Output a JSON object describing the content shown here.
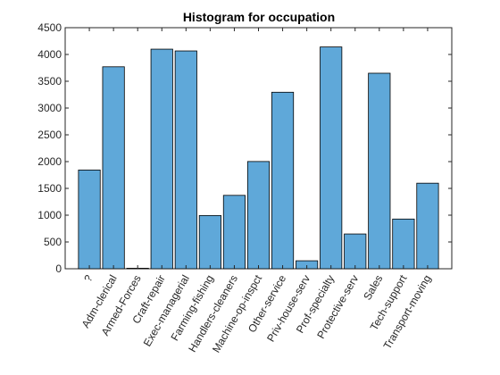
{
  "chart_data": {
    "type": "bar",
    "title": "Histogram for occupation",
    "xlabel": "",
    "ylabel": "",
    "categories": [
      "?",
      "Adm-clerical",
      "Armed-Forces",
      "Craft-repair",
      "Exec-managerial",
      "Farming-fishing",
      "Handlers-cleaners",
      "Machine-op-inspct",
      "Other-service",
      "Priv-house-serv",
      "Prof-specialty",
      "Protective-serv",
      "Sales",
      "Tech-support",
      "Transport-moving"
    ],
    "values": [
      1843,
      3770,
      9,
      4099,
      4066,
      994,
      1370,
      2002,
      3295,
      149,
      4140,
      649,
      3650,
      928,
      1597
    ],
    "ylim": [
      0,
      4500
    ],
    "yticks": [
      0,
      500,
      1000,
      1500,
      2000,
      2500,
      3000,
      3500,
      4000,
      4500
    ],
    "ytick_labels": [
      "0",
      "500",
      "1000",
      "1500",
      "2000",
      "2500",
      "3000",
      "3500",
      "4000",
      "4500"
    ],
    "grid": false,
    "legend": "none",
    "colors": {
      "bar_fill": "#5fa8d9",
      "bar_edge": "#000000",
      "axis": "#262626"
    }
  }
}
